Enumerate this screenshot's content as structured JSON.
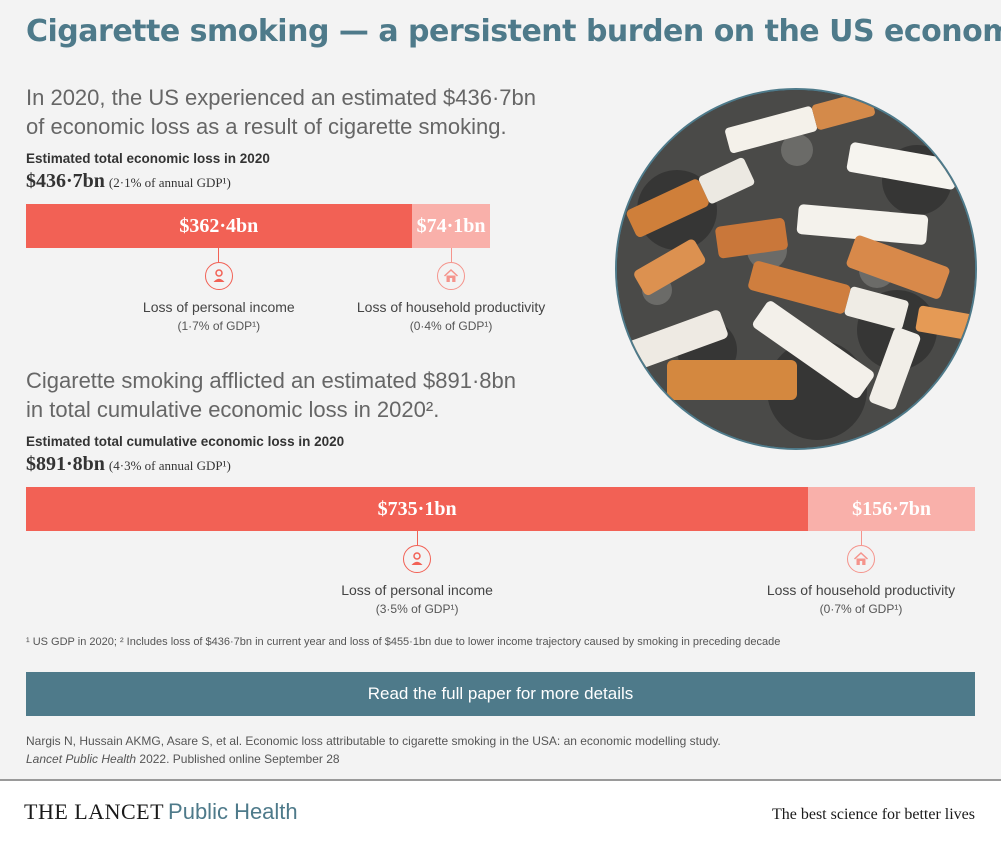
{
  "title": "Cigarette smoking — a persistent burden on the US economy",
  "section1": {
    "lead_line1": "In 2020, the US experienced an estimated $436·7bn",
    "lead_line2": "of economic loss as a result of cigarette smoking.",
    "kicker": "Estimated total economic loss in 2020",
    "total": "$436·7bn",
    "total_note": "(2·1% of annual GDP¹)"
  },
  "section2": {
    "lead_line1": "Cigarette smoking afflicted an estimated $891·8bn",
    "lead_line2": "in total cumulative economic loss in 2020².",
    "kicker": "Estimated total cumulative economic loss in 2020",
    "total": "$891·8bn",
    "total_note": "(4·3% of annual GDP¹)"
  },
  "chart_data": [
    {
      "type": "bar",
      "stacked": true,
      "orientation": "horizontal",
      "total": 436.7,
      "segments": [
        {
          "label": "$362·4bn",
          "value": 362.4,
          "caption": "Loss of personal income",
          "note": "(1·7% of GDP¹)",
          "color": "#f26155",
          "icon": "person-icon"
        },
        {
          "label": "$74·1bn",
          "value": 74.1,
          "caption": "Loss of household productivity",
          "note": "(0·4% of GDP¹)",
          "color": "#f9b0aa",
          "icon": "house-icon"
        }
      ]
    },
    {
      "type": "bar",
      "stacked": true,
      "orientation": "horizontal",
      "total": 891.8,
      "segments": [
        {
          "label": "$735·1bn",
          "value": 735.1,
          "caption": "Loss of personal income",
          "note": "(3·5% of GDP¹)",
          "color": "#f26155",
          "icon": "person-icon"
        },
        {
          "label": "$156·7bn",
          "value": 156.7,
          "caption": "Loss of household productivity",
          "note": "(0·7% of GDP¹)",
          "color": "#f9b0aa",
          "icon": "house-icon"
        }
      ]
    }
  ],
  "footnote": "¹ US GDP in 2020; ² Includes loss of $436·7bn in current year and loss of $455·1bn due to lower income trajectory caused by smoking in preceding decade",
  "cta_label": "Read the full paper for more details",
  "citation": {
    "line1": "Nargis N, Hussain AKMG, Asare S, et al. Economic loss attributable to cigarette smoking in the USA: an economic modelling study.",
    "journal": "Lancet Public Health",
    "line2_rest": " 2022. Published online September 28"
  },
  "footer": {
    "brand": "THE LANCET",
    "brand_sub": "Public Health",
    "tagline": "The best science for better lives"
  },
  "colors": {
    "accent": "#4e7a8a",
    "primary_segment": "#f26155",
    "secondary_segment": "#f9b0aa"
  }
}
